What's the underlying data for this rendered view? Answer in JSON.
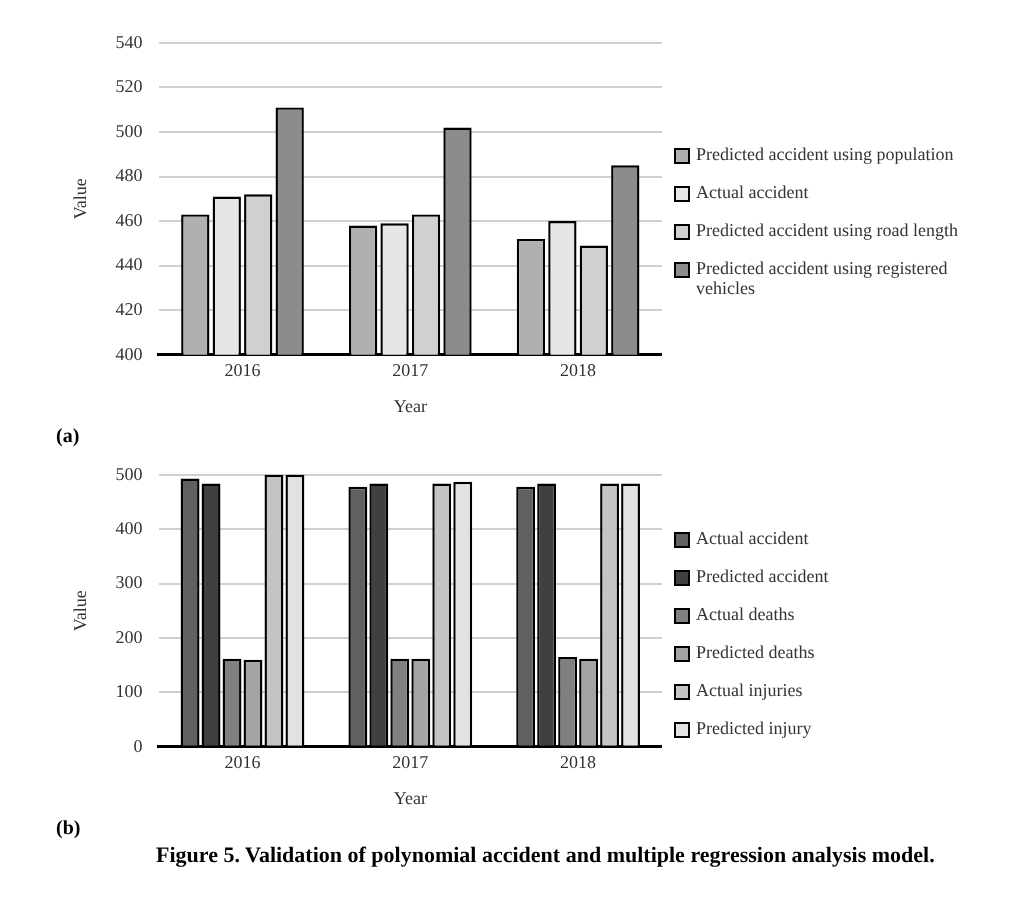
{
  "chart_data": [
    {
      "type": "bar",
      "categories": [
        "2016",
        "2017",
        "2018"
      ],
      "xlabel": "Year",
      "ylabel": "Value",
      "ylim": [
        400,
        540
      ],
      "yticks": [
        400,
        420,
        440,
        460,
        480,
        500,
        520,
        540
      ],
      "grid": "y",
      "legend": "right",
      "annotations": [
        "(a)"
      ],
      "series": [
        {
          "name": "Predicted accident using population",
          "color": "#b0b0b0",
          "values": [
            463,
            458,
            452
          ]
        },
        {
          "name": "Actual accident",
          "color": "#e6e6e6",
          "values": [
            471,
            459,
            460
          ]
        },
        {
          "name": "Predicted accident using road length",
          "color": "#d0d0d0",
          "values": [
            472,
            463,
            449
          ]
        },
        {
          "name": "Predicted accident using registered vehicles",
          "color": "#8c8c8c",
          "values": [
            511,
            502,
            485
          ]
        }
      ]
    },
    {
      "type": "bar",
      "categories": [
        "2016",
        "2017",
        "2018"
      ],
      "xlabel": "Year",
      "ylabel": "Value",
      "ylim": [
        0,
        500
      ],
      "yticks": [
        0,
        100,
        200,
        300,
        400,
        500
      ],
      "grid": "y",
      "legend": "right",
      "annotations": [
        "(b)",
        "Figure 5. Validation of polynomial accident and multiple regression analysis model."
      ],
      "series": [
        {
          "name": "Actual accident",
          "color": "#606060",
          "values": [
            493,
            478,
            478
          ]
        },
        {
          "name": "Predicted accident",
          "color": "#404040",
          "values": [
            484,
            484,
            484
          ]
        },
        {
          "name": "Actual deaths",
          "color": "#808080",
          "values": [
            162,
            162,
            165
          ]
        },
        {
          "name": "Predicted deaths",
          "color": "#a4a4a4",
          "values": [
            160,
            162,
            162
          ]
        },
        {
          "name": "Actual injuries",
          "color": "#c4c4c4",
          "values": [
            500,
            484,
            484
          ]
        },
        {
          "name": "Predicted injury",
          "color": "#e2e2e2",
          "values": [
            500,
            487,
            484
          ]
        }
      ]
    }
  ]
}
